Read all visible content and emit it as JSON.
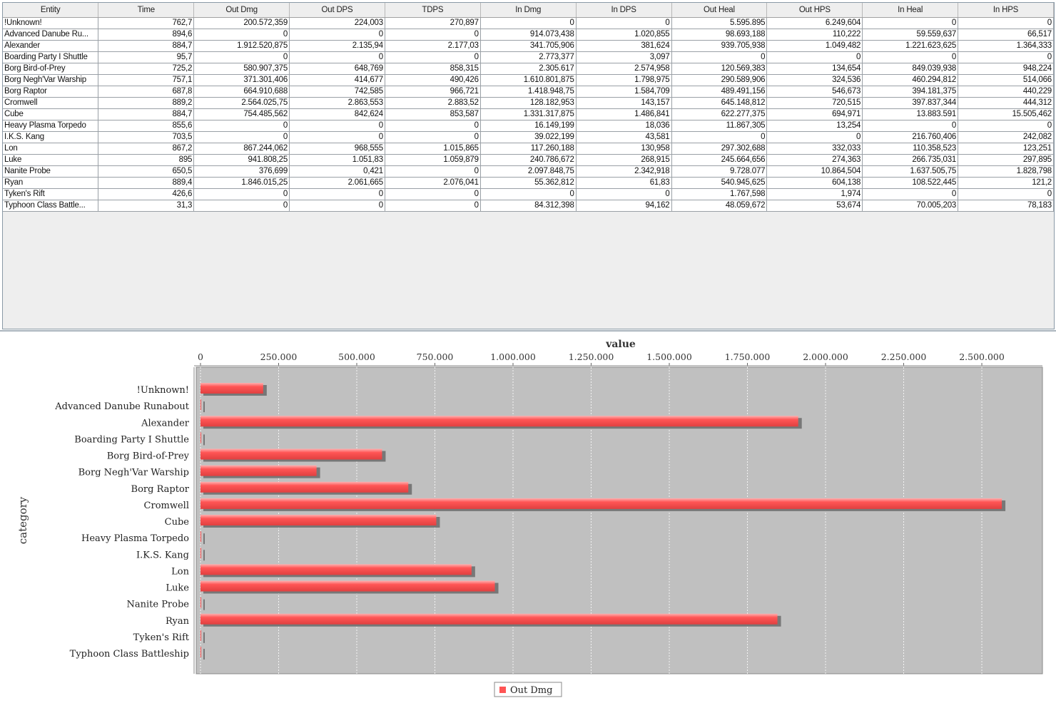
{
  "table": {
    "columns": [
      "Entity",
      "Time",
      "Out Dmg",
      "Out DPS",
      "TDPS",
      "In Dmg",
      "In DPS",
      "Out Heal",
      "Out HPS",
      "In Heal",
      "In HPS"
    ],
    "rows": [
      [
        "!Unknown!",
        "762,7",
        "200.572,359",
        "224,003",
        "270,897",
        "0",
        "0",
        "5.595.895",
        "6.249,604",
        "0",
        "0"
      ],
      [
        "Advanced Danube Ru...",
        "894,6",
        "0",
        "0",
        "0",
        "914.073,438",
        "1.020,855",
        "98.693,188",
        "110,222",
        "59.559,637",
        "66,517"
      ],
      [
        "Alexander",
        "884,7",
        "1.912.520,875",
        "2.135,94",
        "2.177,03",
        "341.705,906",
        "381,624",
        "939.705,938",
        "1.049,482",
        "1.221.623,625",
        "1.364,333"
      ],
      [
        "Boarding Party I Shuttle",
        "95,7",
        "0",
        "0",
        "0",
        "2.773,377",
        "3,097",
        "0",
        "0",
        "0",
        "0"
      ],
      [
        "Borg Bird-of-Prey",
        "725,2",
        "580.907,375",
        "648,769",
        "858,315",
        "2.305.617",
        "2.574,958",
        "120.569,383",
        "134,654",
        "849.039,938",
        "948,224"
      ],
      [
        "Borg Negh'Var Warship",
        "757,1",
        "371.301,406",
        "414,677",
        "490,426",
        "1.610.801,875",
        "1.798,975",
        "290.589,906",
        "324,536",
        "460.294,812",
        "514,066"
      ],
      [
        "Borg Raptor",
        "687,8",
        "664.910,688",
        "742,585",
        "966,721",
        "1.418.948,75",
        "1.584,709",
        "489.491,156",
        "546,673",
        "394.181,375",
        "440,229"
      ],
      [
        "Cromwell",
        "889,2",
        "2.564.025,75",
        "2.863,553",
        "2.883,52",
        "128.182,953",
        "143,157",
        "645.148,812",
        "720,515",
        "397.837,344",
        "444,312"
      ],
      [
        "Cube",
        "884,7",
        "754.485,562",
        "842,624",
        "853,587",
        "1.331.317,875",
        "1.486,841",
        "622.277,375",
        "694,971",
        "13.883.591",
        "15.505,462"
      ],
      [
        "Heavy Plasma Torpedo",
        "855,6",
        "0",
        "0",
        "0",
        "16.149,199",
        "18,036",
        "11.867,305",
        "13,254",
        "0",
        "0"
      ],
      [
        "I.K.S. Kang",
        "703,5",
        "0",
        "0",
        "0",
        "39.022,199",
        "43,581",
        "0",
        "0",
        "216.760,406",
        "242,082"
      ],
      [
        "Lon",
        "867,2",
        "867.244,062",
        "968,555",
        "1.015,865",
        "117.260,188",
        "130,958",
        "297.302,688",
        "332,033",
        "110.358,523",
        "123,251"
      ],
      [
        "Luke",
        "895",
        "941.808,25",
        "1.051,83",
        "1.059,879",
        "240.786,672",
        "268,915",
        "245.664,656",
        "274,363",
        "266.735,031",
        "297,895"
      ],
      [
        "Nanite Probe",
        "650,5",
        "376,699",
        "0,421",
        "0",
        "2.097.848,75",
        "2.342,918",
        "9.728.077",
        "10.864,504",
        "1.637.505,75",
        "1.828,798"
      ],
      [
        "Ryan",
        "889,4",
        "1.846.015,25",
        "2.061,665",
        "2.076,041",
        "55.362,812",
        "61,83",
        "540.945,625",
        "604,138",
        "108.522,445",
        "121,2"
      ],
      [
        "Tyken's Rift",
        "426,6",
        "0",
        "0",
        "0",
        "0",
        "0",
        "1.767,598",
        "1,974",
        "0",
        "0"
      ],
      [
        "Typhoon Class Battle...",
        "31,3",
        "0",
        "0",
        "0",
        "84.312,398",
        "94,162",
        "48.059,672",
        "53,674",
        "70.005,203",
        "78,183"
      ]
    ]
  },
  "chart_data": {
    "type": "bar",
    "orientation": "horizontal",
    "title": "",
    "xlabel": "value",
    "ylabel": "category",
    "categories": [
      "!Unknown!",
      "Advanced Danube Runabout",
      "Alexander",
      "Boarding Party I Shuttle",
      "Borg Bird-of-Prey",
      "Borg Negh'Var Warship",
      "Borg Raptor",
      "Cromwell",
      "Cube",
      "Heavy Plasma Torpedo",
      "I.K.S. Kang",
      "Lon",
      "Luke",
      "Nanite Probe",
      "Ryan",
      "Tyken's Rift",
      "Typhoon Class Battleship"
    ],
    "series": [
      {
        "name": "Out Dmg",
        "color": "#ff5555",
        "values": [
          200572.359,
          0,
          1912520.875,
          0,
          580907.375,
          371301.406,
          664910.688,
          2564025.75,
          754485.562,
          0,
          0,
          867244.062,
          941808.25,
          376.699,
          1846015.25,
          0,
          0
        ]
      }
    ],
    "ticks": [
      0,
      250000,
      500000,
      750000,
      1000000,
      1250000,
      1500000,
      1750000,
      2000000,
      2250000,
      2500000
    ],
    "tick_labels": [
      "0",
      "250.000",
      "500.000",
      "750.000",
      "1.000.000",
      "1.250.000",
      "1.500.000",
      "1.750.000",
      "2.000.000",
      "2.250.000",
      "2.500.000"
    ],
    "xlim": [
      -13700,
      2694000
    ],
    "grid": true,
    "legend": "bottom",
    "plot_bg": "#c0c0c0"
  }
}
